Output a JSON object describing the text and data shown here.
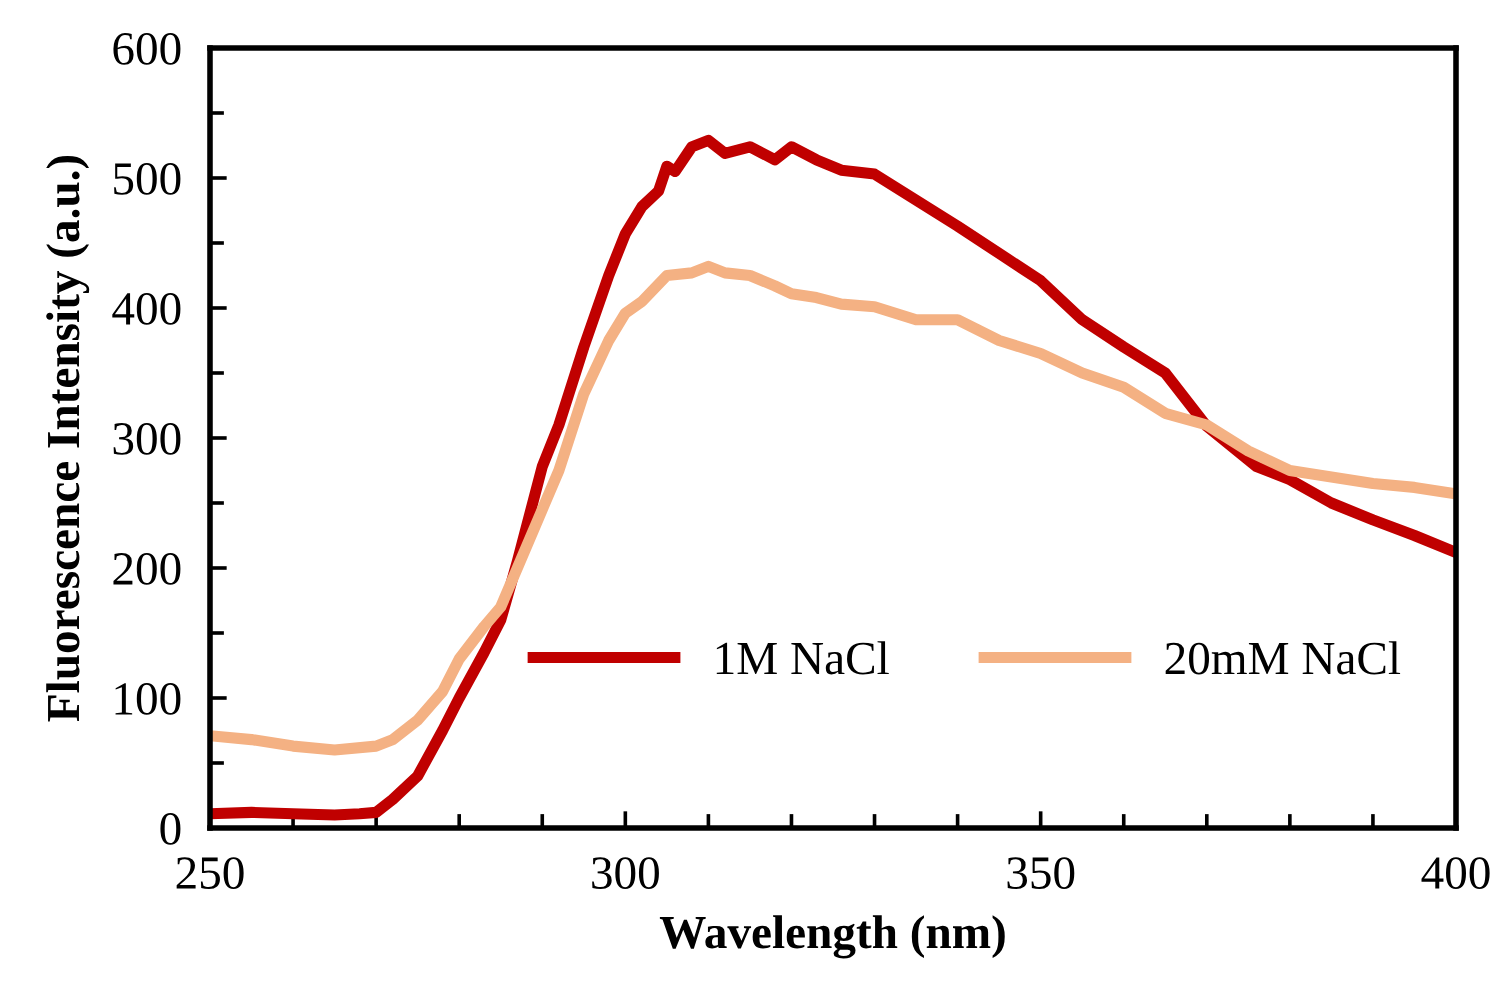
{
  "chart_data": {
    "type": "line",
    "xlabel": "Wavelength (nm)",
    "ylabel": "Fluorescence Intensity (a.u.)",
    "xlim": [
      250,
      400
    ],
    "xticks": [
      250,
      300,
      350,
      400
    ],
    "ylim": [
      0,
      600
    ],
    "yticks": [
      0,
      100,
      200,
      300,
      400,
      500,
      600
    ],
    "grid": false,
    "legend": "bottom right",
    "marker": "none",
    "line_style": "solid",
    "series": [
      {
        "name": "1M NaCl",
        "color": "#c00000",
        "x": [
          250,
          255,
          260,
          265,
          268,
          270,
          272,
          275,
          278,
          280,
          283,
          285,
          287,
          290,
          292,
          295,
          298,
          300,
          302,
          304,
          305,
          306,
          308,
          310,
          312,
          315,
          318,
          320,
          323,
          326,
          330,
          335,
          340,
          345,
          350,
          355,
          360,
          365,
          370,
          376,
          380,
          385,
          390,
          395,
          400
        ],
        "values": [
          11,
          12,
          11,
          10,
          11,
          12,
          22,
          40,
          75,
          100,
          135,
          160,
          205,
          278,
          310,
          370,
          425,
          457,
          478,
          490,
          509,
          505,
          524,
          529,
          519,
          524,
          514,
          524,
          514,
          506,
          503,
          483,
          463,
          442,
          421,
          391,
          370,
          350,
          309,
          278,
          268,
          250,
          237,
          225,
          212
        ]
      },
      {
        "name": "20mM NaCl",
        "color": "#f4b183",
        "x": [
          250,
          255,
          260,
          265,
          270,
          272,
          275,
          278,
          280,
          283,
          285,
          287,
          290,
          292,
          295,
          298,
          300,
          302,
          305,
          308,
          310,
          312,
          315,
          318,
          320,
          323,
          326,
          330,
          335,
          340,
          345,
          350,
          355,
          360,
          365,
          370,
          375,
          380,
          385,
          390,
          395,
          400
        ],
        "values": [
          71,
          68,
          63,
          60,
          63,
          68,
          83,
          105,
          130,
          155,
          170,
          200,
          245,
          275,
          334,
          375,
          396,
          405,
          425,
          427,
          432,
          427,
          425,
          417,
          411,
          408,
          403,
          401,
          391,
          391,
          375,
          365,
          350,
          339,
          319,
          310,
          290,
          275,
          270,
          265,
          262,
          257
        ]
      }
    ]
  }
}
